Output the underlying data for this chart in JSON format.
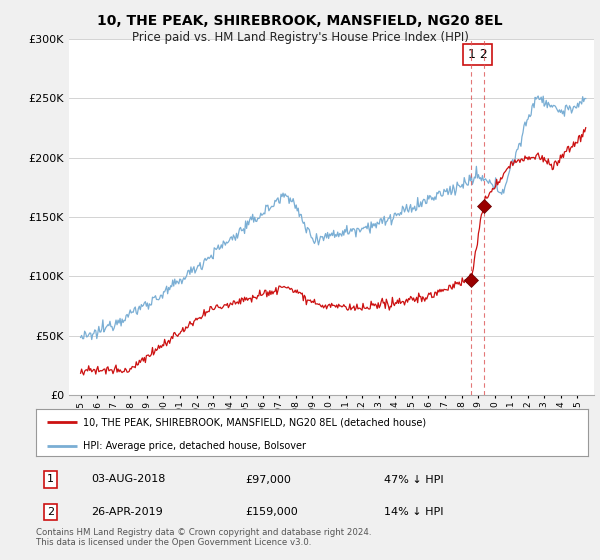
{
  "title": "10, THE PEAK, SHIREBROOK, MANSFIELD, NG20 8EL",
  "subtitle": "Price paid vs. HM Land Registry's House Price Index (HPI)",
  "legend_label_red": "10, THE PEAK, SHIREBROOK, MANSFIELD, NG20 8EL (detached house)",
  "legend_label_blue": "HPI: Average price, detached house, Bolsover",
  "annotation1_date": "03-AUG-2018",
  "annotation1_price": "£97,000",
  "annotation1_pct": "47% ↓ HPI",
  "annotation2_date": "26-APR-2019",
  "annotation2_price": "£159,000",
  "annotation2_pct": "14% ↓ HPI",
  "footnote": "Contains HM Land Registry data © Crown copyright and database right 2024.\nThis data is licensed under the Open Government Licence v3.0.",
  "ylim": [
    0,
    300000
  ],
  "yticks": [
    0,
    50000,
    100000,
    150000,
    200000,
    250000,
    300000
  ],
  "background_color": "#f0f0f0",
  "plot_background": "#ffffff",
  "sale1_year": 2018.6,
  "sale1_price": 97000,
  "sale2_year": 2019.33,
  "sale2_price": 159000
}
